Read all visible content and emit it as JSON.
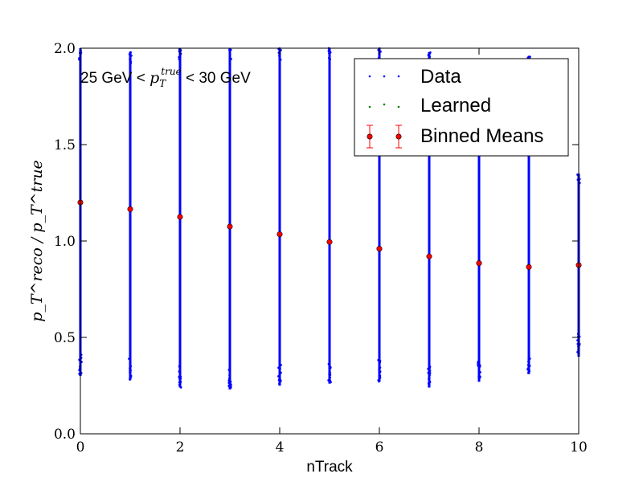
{
  "chart_data": {
    "type": "scatter",
    "xlabel": "nTrack",
    "ylabel": "p_T^reco / p_T^true",
    "xlim": [
      0,
      10
    ],
    "ylim": [
      0.0,
      2.0
    ],
    "x_ticks": [
      "0",
      "2",
      "4",
      "6",
      "8",
      "10"
    ],
    "y_ticks": [
      "0.0",
      "0.5",
      "1.0",
      "1.5",
      "2.0"
    ],
    "annotation": {
      "prefix": "25 GeV < ",
      "var": "p",
      "sub": "T",
      "sup": "true",
      "suffix": " < 30 GeV"
    },
    "legend": {
      "position": "top-right",
      "entries": [
        "Data",
        "Learned",
        "Binned Means"
      ]
    },
    "series": [
      {
        "name": "Data",
        "color": "#0000ff",
        "columns": [
          {
            "x": 0,
            "ymin": 0.3,
            "ymax": 2.0
          },
          {
            "x": 1,
            "ymin": 0.28,
            "ymax": 1.98
          },
          {
            "x": 2,
            "ymin": 0.24,
            "ymax": 2.0
          },
          {
            "x": 3,
            "ymin": 0.23,
            "ymax": 2.0
          },
          {
            "x": 4,
            "ymin": 0.25,
            "ymax": 2.0
          },
          {
            "x": 5,
            "ymin": 0.26,
            "ymax": 2.0
          },
          {
            "x": 6,
            "ymin": 0.27,
            "ymax": 2.0
          },
          {
            "x": 7,
            "ymin": 0.24,
            "ymax": 1.98
          },
          {
            "x": 8,
            "ymin": 0.27,
            "ymax": 1.7
          },
          {
            "x": 9,
            "ymin": 0.31,
            "ymax": 1.96
          },
          {
            "x": 10,
            "ymin": 0.4,
            "ymax": 1.35
          }
        ]
      },
      {
        "name": "Learned",
        "color": "#008000",
        "x": [
          0,
          1,
          2,
          3,
          4,
          5,
          6,
          7,
          8,
          9,
          10
        ],
        "y": [
          1.2,
          1.165,
          1.125,
          1.075,
          1.035,
          0.995,
          0.96,
          0.925,
          0.89,
          0.87,
          0.875
        ]
      },
      {
        "name": "Binned Means",
        "color": "#ff0000",
        "x": [
          0,
          1,
          2,
          3,
          4,
          5,
          6,
          7,
          8,
          9,
          10
        ],
        "y": [
          1.2,
          1.165,
          1.125,
          1.075,
          1.035,
          0.995,
          0.96,
          0.92,
          0.885,
          0.865,
          0.875
        ]
      }
    ]
  }
}
